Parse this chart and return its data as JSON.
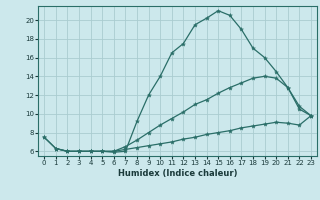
{
  "xlabel": "Humidex (Indice chaleur)",
  "background_color": "#cce8ec",
  "grid_color": "#aaccd0",
  "line_color": "#2a6e68",
  "xlim": [
    -0.5,
    23.5
  ],
  "ylim": [
    5.5,
    21.5
  ],
  "yticks": [
    6,
    8,
    10,
    12,
    14,
    16,
    18,
    20
  ],
  "xticks": [
    0,
    1,
    2,
    3,
    4,
    5,
    6,
    7,
    8,
    9,
    10,
    11,
    12,
    13,
    14,
    15,
    16,
    17,
    18,
    19,
    20,
    21,
    22,
    23
  ],
  "curve1_x": [
    1,
    2,
    3,
    4,
    5,
    6,
    7,
    8,
    9,
    10,
    11,
    12,
    13,
    14,
    15,
    16,
    17,
    18,
    19,
    20,
    21,
    22,
    23
  ],
  "curve1_y": [
    6.3,
    6.0,
    6.0,
    6.0,
    6.0,
    5.9,
    6.0,
    9.2,
    12.0,
    14.0,
    16.5,
    17.5,
    19.5,
    20.2,
    21.0,
    20.5,
    19.0,
    17.0,
    16.0,
    14.5,
    12.8,
    10.5,
    9.8
  ],
  "curve2_x": [
    0,
    1,
    2,
    3,
    4,
    5,
    6,
    7,
    8,
    9,
    10,
    11,
    12,
    13,
    14,
    15,
    16,
    17,
    18,
    19,
    20,
    21,
    22,
    23
  ],
  "curve2_y": [
    7.5,
    6.3,
    6.0,
    6.0,
    6.0,
    6.0,
    6.0,
    6.5,
    7.2,
    8.0,
    8.8,
    9.5,
    10.2,
    11.0,
    11.5,
    12.2,
    12.8,
    13.3,
    13.8,
    14.0,
    13.8,
    12.8,
    10.8,
    9.8
  ],
  "curve3_x": [
    0,
    1,
    2,
    3,
    4,
    5,
    6,
    7,
    8,
    9,
    10,
    11,
    12,
    13,
    14,
    15,
    16,
    17,
    18,
    19,
    20,
    21,
    22,
    23
  ],
  "curve3_y": [
    7.5,
    6.3,
    6.0,
    6.0,
    6.0,
    6.0,
    6.0,
    6.2,
    6.4,
    6.6,
    6.8,
    7.0,
    7.3,
    7.5,
    7.8,
    8.0,
    8.2,
    8.5,
    8.7,
    8.9,
    9.1,
    9.0,
    8.8,
    9.8
  ]
}
